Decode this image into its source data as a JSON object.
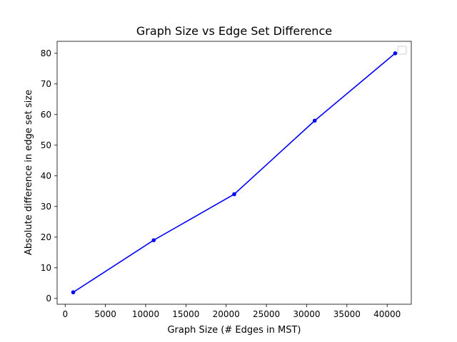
{
  "chart_data": {
    "type": "line",
    "title": "Graph Size vs Edge Set Difference",
    "xlabel": "Graph Size (# Edges in MST)",
    "ylabel": "Absolute difference in edge set size",
    "xlim": [
      -1000,
      43000
    ],
    "ylim": [
      -1.9,
      83.9
    ],
    "x_ticks": [
      0,
      5000,
      10000,
      15000,
      20000,
      25000,
      30000,
      35000,
      40000
    ],
    "y_ticks": [
      0,
      10,
      20,
      30,
      40,
      50,
      60,
      70,
      80
    ],
    "series": [
      {
        "color": "#0000ff",
        "marker": "circle",
        "x": [
          1000,
          11000,
          21000,
          31000,
          41000
        ],
        "y": [
          2,
          19,
          34,
          58,
          80
        ]
      }
    ],
    "legend": {
      "position": "top-right",
      "entries": []
    },
    "grid": false
  }
}
